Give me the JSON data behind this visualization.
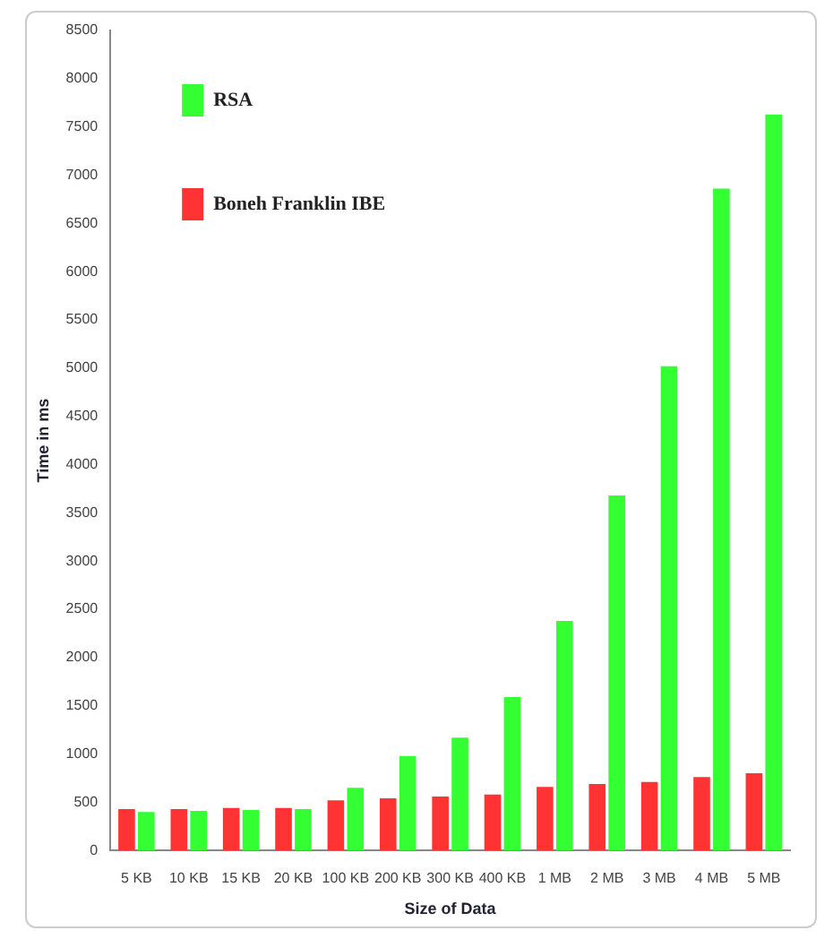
{
  "chart_data": {
    "type": "bar",
    "xlabel": "Size of Data",
    "ylabel": "Time in ms",
    "categories": [
      "5 KB",
      "10 KB",
      "15 KB",
      "20 KB",
      "100 KB",
      "200 KB",
      "300 KB",
      "400 KB",
      "1 MB",
      "2 MB",
      "3 MB",
      "4 MB",
      "5 MB"
    ],
    "series": [
      {
        "name": "RSA",
        "color": "#33ff33",
        "values": [
          400,
          410,
          420,
          430,
          650,
          980,
          1170,
          1590,
          2380,
          3680,
          5020,
          6860,
          7630
        ]
      },
      {
        "name": "Boneh Franklin IBE",
        "color": "#ff3333",
        "values": [
          430,
          430,
          440,
          440,
          520,
          540,
          560,
          580,
          660,
          690,
          710,
          760,
          800
        ]
      }
    ],
    "ylim": [
      0,
      8500
    ],
    "yticks": [
      0,
      500,
      1000,
      1500,
      2000,
      2500,
      3000,
      3500,
      4000,
      4500,
      5000,
      5500,
      6000,
      6500,
      7000,
      7500,
      8000,
      8500
    ],
    "grid": false,
    "legend": "top left"
  }
}
